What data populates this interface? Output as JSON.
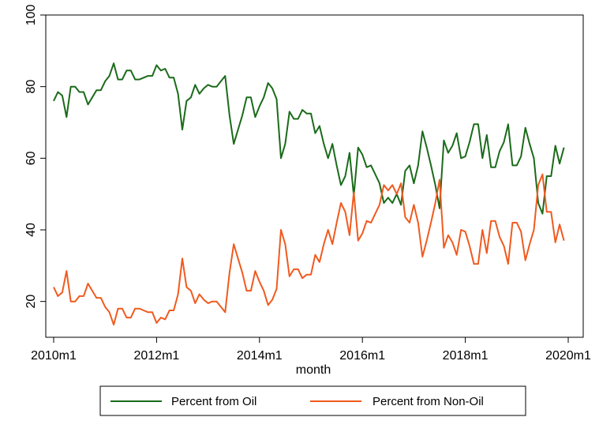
{
  "chart_data": {
    "type": "line",
    "xlabel": "month",
    "ylabel": "",
    "x_start": "2010m1",
    "x_end": "2019m12",
    "xlim": [
      "2010m1",
      "2020m1"
    ],
    "ylim": [
      10,
      100
    ],
    "x_ticks": [
      "2010m1",
      "2012m1",
      "2014m1",
      "2016m1",
      "2018m1",
      "2020m1"
    ],
    "y_ticks": [
      20,
      40,
      60,
      80,
      100
    ],
    "grid": false,
    "legend_position": "bottom",
    "series": [
      {
        "name": "Percent from Oil",
        "color": "#1a6b1a",
        "values": [
          76,
          78.5,
          77.5,
          71.5,
          80,
          80,
          78.5,
          78.5,
          75,
          77,
          79,
          79,
          81.5,
          83,
          86.5,
          82,
          82,
          84.5,
          84.5,
          82,
          82,
          82.5,
          83,
          83,
          86,
          84.5,
          85,
          82.5,
          82.5,
          78,
          68,
          76,
          77,
          80.5,
          78,
          79.5,
          80.5,
          80,
          80,
          81.5,
          83,
          72,
          64,
          68,
          72,
          77,
          77,
          71.5,
          74.5,
          77,
          81,
          79.5,
          76.5,
          60,
          64,
          73,
          71,
          71,
          73.5,
          72.5,
          72.5,
          67,
          69,
          64,
          60,
          64,
          58,
          52.5,
          55,
          61.5,
          49.5,
          63,
          61,
          57.5,
          58,
          55.5,
          53,
          47.5,
          49,
          47.5,
          50,
          47,
          56.5,
          58,
          53,
          58,
          67.5,
          63,
          58,
          52.5,
          46,
          65,
          61.5,
          63.5,
          67,
          60,
          60.5,
          64.5,
          69.5,
          69.5,
          60,
          66.5,
          57.5,
          57.5,
          62,
          64.5,
          69.5,
          58,
          58,
          60.5,
          68.5,
          64,
          60,
          47.5,
          44.5,
          55,
          55,
          63.5,
          58.5,
          63
        ]
      },
      {
        "name": "Percent from Non-Oil",
        "color": "#f05a1e",
        "values": [
          24,
          21.5,
          22.5,
          28.5,
          20,
          20,
          21.5,
          21.5,
          25,
          23,
          21,
          21,
          18.5,
          17,
          13.5,
          18,
          18,
          15.5,
          15.5,
          18,
          18,
          17.5,
          17,
          17,
          14,
          15.5,
          15,
          17.5,
          17.5,
          22,
          32,
          24,
          23,
          19.5,
          22,
          20.5,
          19.5,
          20,
          20,
          18.5,
          17,
          28,
          36,
          32,
          28,
          23,
          23,
          28.5,
          25.5,
          23,
          19,
          20.5,
          23.5,
          40,
          36,
          27,
          29,
          29,
          26.5,
          27.5,
          27.5,
          33,
          31,
          36,
          40,
          36,
          42,
          47.5,
          45,
          38.5,
          50.5,
          37,
          39,
          42.5,
          42,
          44.5,
          47,
          52.5,
          51,
          52.5,
          50,
          53,
          43.5,
          42,
          47,
          42,
          32.5,
          37,
          42,
          47.5,
          54,
          35,
          38.5,
          36.5,
          33,
          40,
          39.5,
          35.5,
          30.5,
          30.5,
          40,
          33.5,
          42.5,
          42.5,
          38,
          35.5,
          30.5,
          42,
          42,
          39.5,
          31.5,
          36,
          40,
          52.5,
          55.5,
          45,
          45,
          36.5,
          41.5,
          37
        ]
      }
    ]
  }
}
